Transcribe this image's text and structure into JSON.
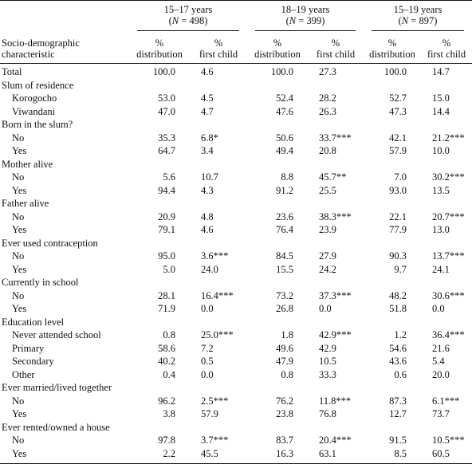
{
  "header": {
    "groups": [
      {
        "label": "15–17 years",
        "n_label": "(N = 498)"
      },
      {
        "label": "18–19 years",
        "n_label": "(N = 399)"
      },
      {
        "label": "15–19 years",
        "n_label": "(N = 897)"
      }
    ],
    "row_header_line1": "Socio-demographic",
    "row_header_line2": "characteristic",
    "col_pct": "%",
    "col_dist": "distribution",
    "col_first": "first child"
  },
  "rows": [
    {
      "label": "Total",
      "indent": false,
      "v": [
        "100.0",
        "4.6",
        "100.0",
        "27.3",
        "100.0",
        "14.7"
      ]
    },
    {
      "label": "Slum of residence",
      "indent": false,
      "heading": true
    },
    {
      "label": "Korogocho",
      "indent": true,
      "v": [
        "53.0",
        "4.5",
        "52.4",
        "28.2",
        "52.7",
        "15.0"
      ]
    },
    {
      "label": "Viwandani",
      "indent": true,
      "v": [
        "47.0",
        "4.7",
        "47.6",
        "26.3",
        "47.3",
        "14.4"
      ]
    },
    {
      "label": "Born in the slum?",
      "indent": false,
      "heading": true
    },
    {
      "label": "No",
      "indent": true,
      "v": [
        "35.3",
        "6.8*",
        "50.6",
        "33.7***",
        "42.1",
        "21.2***"
      ]
    },
    {
      "label": "Yes",
      "indent": true,
      "v": [
        "64.7",
        "3.4",
        "49.4",
        "20.8",
        "57.9",
        "10.0"
      ]
    },
    {
      "label": "Mother alive",
      "indent": false,
      "heading": true
    },
    {
      "label": "No",
      "indent": true,
      "v": [
        "5.6",
        "10.7",
        "8.8",
        "45.7**",
        "7.0",
        "30.2***"
      ]
    },
    {
      "label": "Yes",
      "indent": true,
      "v": [
        "94.4",
        "4.3",
        "91.2",
        "25.5",
        "93.0",
        "13.5"
      ]
    },
    {
      "label": "Father alive",
      "indent": false,
      "heading": true
    },
    {
      "label": "No",
      "indent": true,
      "v": [
        "20.9",
        "4.8",
        "23.6",
        "38.3***",
        "22.1",
        "20.7***"
      ]
    },
    {
      "label": "Yes",
      "indent": true,
      "v": [
        "79.1",
        "4.6",
        "76.4",
        "23.9",
        "77.9",
        "13.0"
      ]
    },
    {
      "label": "Ever used contraception",
      "indent": false,
      "heading": true
    },
    {
      "label": "No",
      "indent": true,
      "v": [
        "95.0",
        "3.6***",
        "84.5",
        "27.9",
        "90.3",
        "13.7***"
      ]
    },
    {
      "label": "Yes",
      "indent": true,
      "v": [
        "5.0",
        "24.0",
        "15.5",
        "24.2",
        "9.7",
        "24.1"
      ]
    },
    {
      "label": "Currently in school",
      "indent": false,
      "heading": true
    },
    {
      "label": "No",
      "indent": true,
      "v": [
        "28.1",
        "16.4***",
        "73.2",
        "37.3***",
        "48.2",
        "30.6***"
      ]
    },
    {
      "label": "Yes",
      "indent": true,
      "v": [
        "71.9",
        "0.0",
        "26.8",
        "0.0",
        "51.8",
        "0.0"
      ]
    },
    {
      "label": "Education level",
      "indent": false,
      "heading": true
    },
    {
      "label": "Never attended school",
      "indent": true,
      "v": [
        "0.8",
        "25.0***",
        "1.8",
        "42.9***",
        "1.2",
        "36.4***"
      ]
    },
    {
      "label": "Primary",
      "indent": true,
      "v": [
        "58.6",
        "7.2",
        "49.6",
        "42.9",
        "54.6",
        "21.6"
      ]
    },
    {
      "label": "Secondary",
      "indent": true,
      "v": [
        "40.2",
        "0.5",
        "47.9",
        "10.5",
        "43.6",
        "5.4"
      ]
    },
    {
      "label": "Other",
      "indent": true,
      "v": [
        "0.4",
        "0.0",
        "0.8",
        "33.3",
        "0.6",
        "20.0"
      ]
    },
    {
      "label": "Ever married/lived together",
      "indent": false,
      "heading": true
    },
    {
      "label": "No",
      "indent": true,
      "v": [
        "96.2",
        "2.5***",
        "76.2",
        "11.8***",
        "87.3",
        "6.1***"
      ]
    },
    {
      "label": "Yes",
      "indent": true,
      "v": [
        "3.8",
        "57.9",
        "23.8",
        "76.8",
        "12.7",
        "73.7"
      ]
    },
    {
      "label": "Ever rented/owned a house",
      "indent": false,
      "heading": true
    },
    {
      "label": "No",
      "indent": true,
      "v": [
        "97.8",
        "3.7***",
        "83.7",
        "20.4***",
        "91.5",
        "10.5***"
      ]
    },
    {
      "label": "Yes",
      "indent": true,
      "v": [
        "2.2",
        "45.5",
        "16.3",
        "63.1",
        "8.5",
        "60.5"
      ]
    }
  ]
}
